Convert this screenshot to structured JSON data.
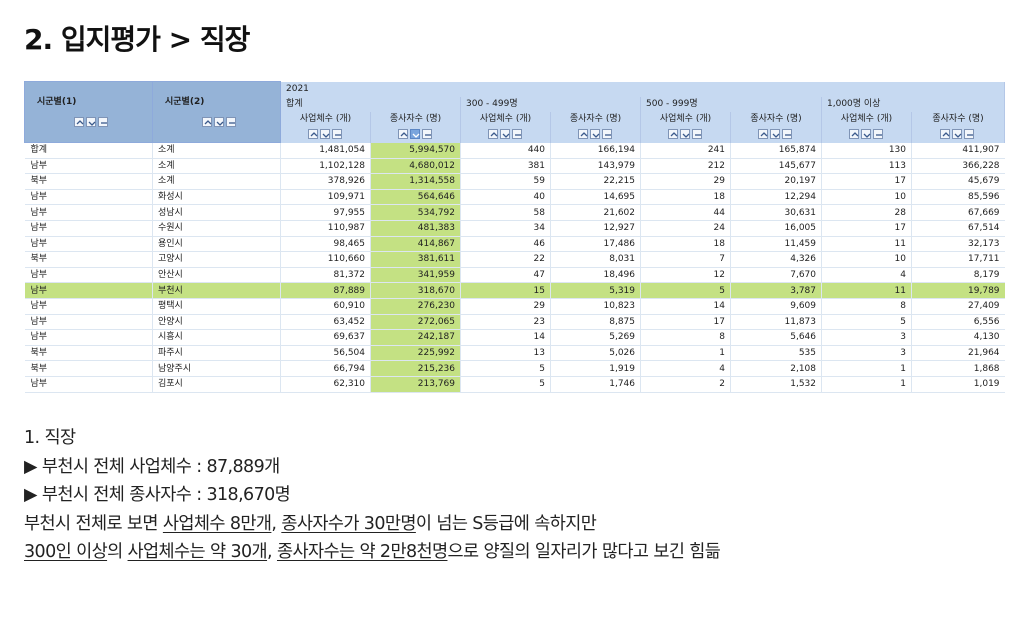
{
  "title": "2. 입지평가 > 직장",
  "table": {
    "year": "2021",
    "row_header_1": "시군별(1)",
    "row_header_2": "시군별(2)",
    "groups": [
      "합계",
      "300 - 499명",
      "500 - 999명",
      "1,000명 이상"
    ],
    "sub_headers": [
      "사업체수 (개)",
      "종사자수 (명)",
      "사업체수 (개)",
      "종사자수 (명)",
      "사업체수 (개)",
      "종사자수 (명)",
      "사업체수 (개)",
      "종사자수 (명)"
    ],
    "rows": [
      [
        "합계",
        "소계",
        "1,481,054",
        "5,994,570",
        "440",
        "166,194",
        "241",
        "165,874",
        "130",
        "411,907"
      ],
      [
        "남부",
        "소계",
        "1,102,128",
        "4,680,012",
        "381",
        "143,979",
        "212",
        "145,677",
        "113",
        "366,228"
      ],
      [
        "북부",
        "소계",
        "378,926",
        "1,314,558",
        "59",
        "22,215",
        "29",
        "20,197",
        "17",
        "45,679"
      ],
      [
        "남부",
        "화성시",
        "109,971",
        "564,646",
        "40",
        "14,695",
        "18",
        "12,294",
        "10",
        "85,596"
      ],
      [
        "남부",
        "성남시",
        "97,955",
        "534,792",
        "58",
        "21,602",
        "44",
        "30,631",
        "28",
        "67,669"
      ],
      [
        "남부",
        "수원시",
        "110,987",
        "481,383",
        "34",
        "12,927",
        "24",
        "16,005",
        "17",
        "67,514"
      ],
      [
        "남부",
        "용인시",
        "98,465",
        "414,867",
        "46",
        "17,486",
        "18",
        "11,459",
        "11",
        "32,173"
      ],
      [
        "북부",
        "고양시",
        "110,660",
        "381,611",
        "22",
        "8,031",
        "7",
        "4,326",
        "10",
        "17,711"
      ],
      [
        "남부",
        "안산시",
        "81,372",
        "341,959",
        "47",
        "18,496",
        "12",
        "7,670",
        "4",
        "8,179"
      ],
      [
        "남부",
        "부천시",
        "87,889",
        "318,670",
        "15",
        "5,319",
        "5",
        "3,787",
        "11",
        "19,789"
      ],
      [
        "남부",
        "평택시",
        "60,910",
        "276,230",
        "29",
        "10,823",
        "14",
        "9,609",
        "8",
        "27,409"
      ],
      [
        "남부",
        "안양시",
        "63,452",
        "272,065",
        "23",
        "8,875",
        "17",
        "11,873",
        "5",
        "6,556"
      ],
      [
        "남부",
        "시흥시",
        "69,637",
        "242,187",
        "14",
        "5,269",
        "8",
        "5,646",
        "3",
        "4,130"
      ],
      [
        "북부",
        "파주시",
        "56,504",
        "225,992",
        "13",
        "5,026",
        "1",
        "535",
        "3",
        "21,964"
      ],
      [
        "북부",
        "남양주시",
        "66,794",
        "215,236",
        "5",
        "1,919",
        "4",
        "2,108",
        "1",
        "1,868"
      ],
      [
        "남부",
        "김포시",
        "62,310",
        "213,769",
        "5",
        "1,746",
        "2",
        "1,532",
        "1",
        "1,019"
      ]
    ],
    "highlight_row_index": 9,
    "highlight_color": "#c4e183",
    "header_color": "#c6d9f1",
    "row_header_color": "#95b3d7"
  },
  "notes": {
    "heading": "1. 직장",
    "bullet1": "▶ 부천시 전체 사업체수 : 87,889개",
    "bullet2": "▶ 부천시 전체 종사자수 : 318,670명",
    "line3": {
      "a": "부천시 전체로 보면 ",
      "b": "사업체수 8만개",
      "c": ", ",
      "d": "종사자수가 30만명",
      "e": "이 넘는 S등급에 속하지만"
    },
    "line4": {
      "a": "300인 이상",
      "b": "의 ",
      "c": "사업체수는 약 30개",
      "d": ", ",
      "e": "종사자수는 약 2만8천명",
      "f": "으로 양질의 일자리가 많다고 보긴 힘듦"
    }
  }
}
